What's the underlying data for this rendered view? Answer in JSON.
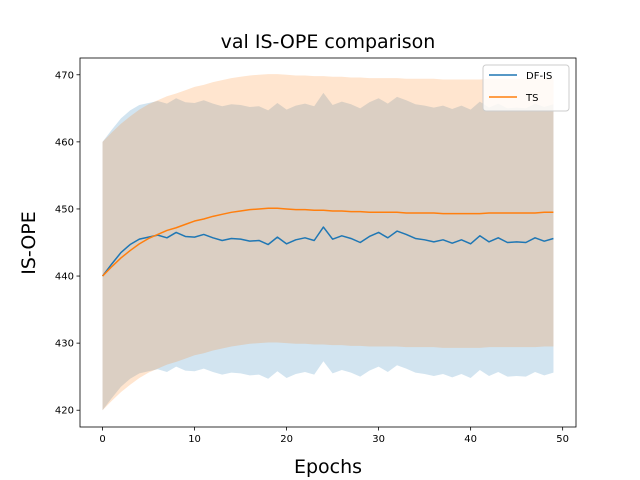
{
  "chart_data": {
    "type": "line",
    "title": "val IS-OPE comparison",
    "xlabel": "Epochs",
    "ylabel": "IS-OPE",
    "xlim": [
      -2.45,
      51.45
    ],
    "ylim": [
      417.5,
      472.5
    ],
    "xticks": [
      0,
      10,
      20,
      30,
      40,
      50
    ],
    "yticks": [
      420,
      430,
      440,
      450,
      460,
      470
    ],
    "grid": false,
    "legend_position": "top-right",
    "x": [
      0,
      1,
      2,
      3,
      4,
      5,
      6,
      7,
      8,
      9,
      10,
      11,
      12,
      13,
      14,
      15,
      16,
      17,
      18,
      19,
      20,
      21,
      22,
      23,
      24,
      25,
      26,
      27,
      28,
      29,
      30,
      31,
      32,
      33,
      34,
      35,
      36,
      37,
      38,
      39,
      40,
      41,
      42,
      43,
      44,
      45,
      46,
      47,
      48,
      49
    ],
    "series": [
      {
        "name": "DF-IS",
        "color": "#1f77b4",
        "band_alpha": 0.2,
        "values": [
          440.0,
          441.8,
          443.5,
          444.7,
          445.5,
          445.8,
          446.1,
          445.7,
          446.5,
          445.9,
          445.8,
          446.2,
          445.7,
          445.3,
          445.6,
          445.5,
          445.2,
          445.3,
          444.7,
          445.8,
          444.8,
          445.4,
          445.7,
          445.3,
          447.3,
          445.5,
          446.0,
          445.6,
          445.0,
          445.9,
          446.5,
          445.7,
          446.7,
          446.2,
          445.6,
          445.4,
          445.1,
          445.4,
          444.9,
          445.4,
          444.8,
          446.0,
          445.1,
          445.7,
          445.0,
          445.1,
          445.0,
          445.7,
          445.2,
          445.6
        ],
        "lower": [
          420.0,
          421.8,
          423.5,
          424.7,
          425.5,
          425.8,
          426.1,
          425.7,
          426.5,
          425.9,
          425.8,
          426.2,
          425.7,
          425.3,
          425.6,
          425.5,
          425.2,
          425.3,
          424.7,
          425.8,
          424.8,
          425.4,
          425.7,
          425.3,
          427.3,
          425.5,
          426.0,
          425.6,
          425.0,
          425.9,
          426.5,
          425.7,
          426.7,
          426.2,
          425.6,
          425.4,
          425.1,
          425.4,
          424.9,
          425.4,
          424.8,
          426.0,
          425.1,
          425.7,
          425.0,
          425.1,
          425.0,
          425.7,
          425.2,
          425.6
        ],
        "upper": [
          460.0,
          461.8,
          463.5,
          464.7,
          465.5,
          465.8,
          466.1,
          465.7,
          466.5,
          465.9,
          465.8,
          466.2,
          465.7,
          465.3,
          465.6,
          465.5,
          465.2,
          465.3,
          464.7,
          465.8,
          464.8,
          465.4,
          465.7,
          465.3,
          467.3,
          465.5,
          466.0,
          465.6,
          465.0,
          465.9,
          466.5,
          465.7,
          466.7,
          466.2,
          465.6,
          465.4,
          465.1,
          465.4,
          464.9,
          465.4,
          464.8,
          466.0,
          465.1,
          465.7,
          465.0,
          465.1,
          465.0,
          465.7,
          465.2,
          465.6
        ]
      },
      {
        "name": "TS",
        "color": "#ff7f0e",
        "band_alpha": 0.2,
        "values": [
          440.0,
          441.4,
          442.7,
          443.8,
          444.8,
          445.6,
          446.2,
          446.8,
          447.2,
          447.7,
          448.2,
          448.5,
          448.9,
          449.2,
          449.5,
          449.7,
          449.9,
          450.0,
          450.1,
          450.1,
          450.0,
          449.9,
          449.9,
          449.8,
          449.8,
          449.7,
          449.7,
          449.6,
          449.6,
          449.5,
          449.5,
          449.5,
          449.5,
          449.4,
          449.4,
          449.4,
          449.4,
          449.3,
          449.3,
          449.3,
          449.3,
          449.3,
          449.4,
          449.4,
          449.4,
          449.4,
          449.4,
          449.4,
          449.5,
          449.5
        ],
        "lower": [
          420.0,
          421.4,
          422.7,
          423.8,
          424.8,
          425.6,
          426.2,
          426.8,
          427.2,
          427.7,
          428.2,
          428.5,
          428.9,
          429.2,
          429.5,
          429.7,
          429.9,
          430.0,
          430.1,
          430.1,
          430.0,
          429.9,
          429.9,
          429.8,
          429.8,
          429.7,
          429.7,
          429.6,
          429.6,
          429.5,
          429.5,
          429.5,
          429.5,
          429.4,
          429.4,
          429.4,
          429.4,
          429.3,
          429.3,
          429.3,
          429.3,
          429.3,
          429.4,
          429.4,
          429.4,
          429.4,
          429.4,
          429.4,
          429.5,
          429.5
        ],
        "upper": [
          460.0,
          461.4,
          462.7,
          463.8,
          464.8,
          465.6,
          466.2,
          466.8,
          467.2,
          467.7,
          468.2,
          468.5,
          468.9,
          469.2,
          469.5,
          469.7,
          469.9,
          470.0,
          470.1,
          470.1,
          470.0,
          469.9,
          469.9,
          469.8,
          469.8,
          469.7,
          469.7,
          469.6,
          469.6,
          469.5,
          469.5,
          469.5,
          469.5,
          469.4,
          469.4,
          469.4,
          469.4,
          469.3,
          469.3,
          469.3,
          469.3,
          469.3,
          469.4,
          469.4,
          469.4,
          469.4,
          469.4,
          469.4,
          469.5,
          469.5
        ]
      }
    ]
  }
}
